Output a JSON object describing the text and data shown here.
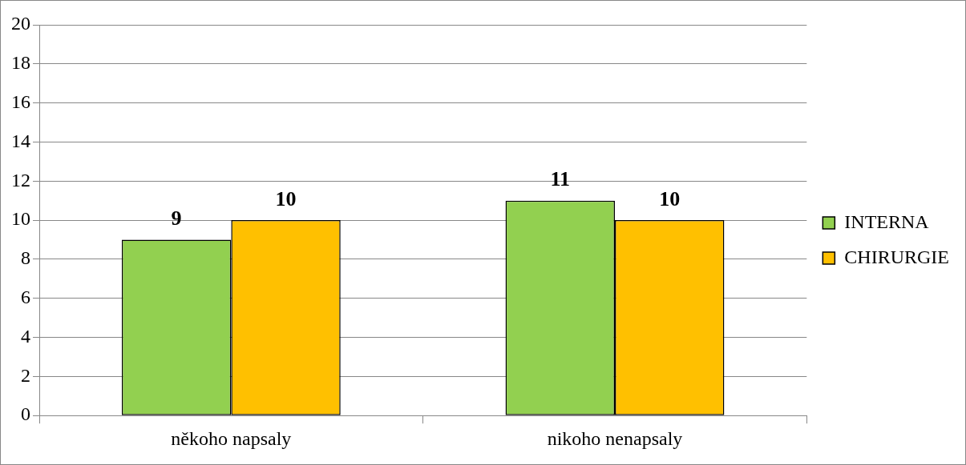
{
  "chart_data": {
    "type": "bar",
    "categories": [
      "někoho napsaly",
      "nikoho nenapsaly"
    ],
    "series": [
      {
        "name": "INTERNA",
        "color": "#92d050",
        "values": [
          9,
          11
        ]
      },
      {
        "name": "CHIRURGIE",
        "color": "#ffc000",
        "values": [
          10,
          10
        ]
      }
    ],
    "ylim": [
      0,
      20
    ],
    "yticks": [
      0,
      2,
      4,
      6,
      8,
      10,
      12,
      14,
      16,
      18,
      20
    ],
    "grid": "y",
    "legend": "right",
    "data_labels": true
  }
}
